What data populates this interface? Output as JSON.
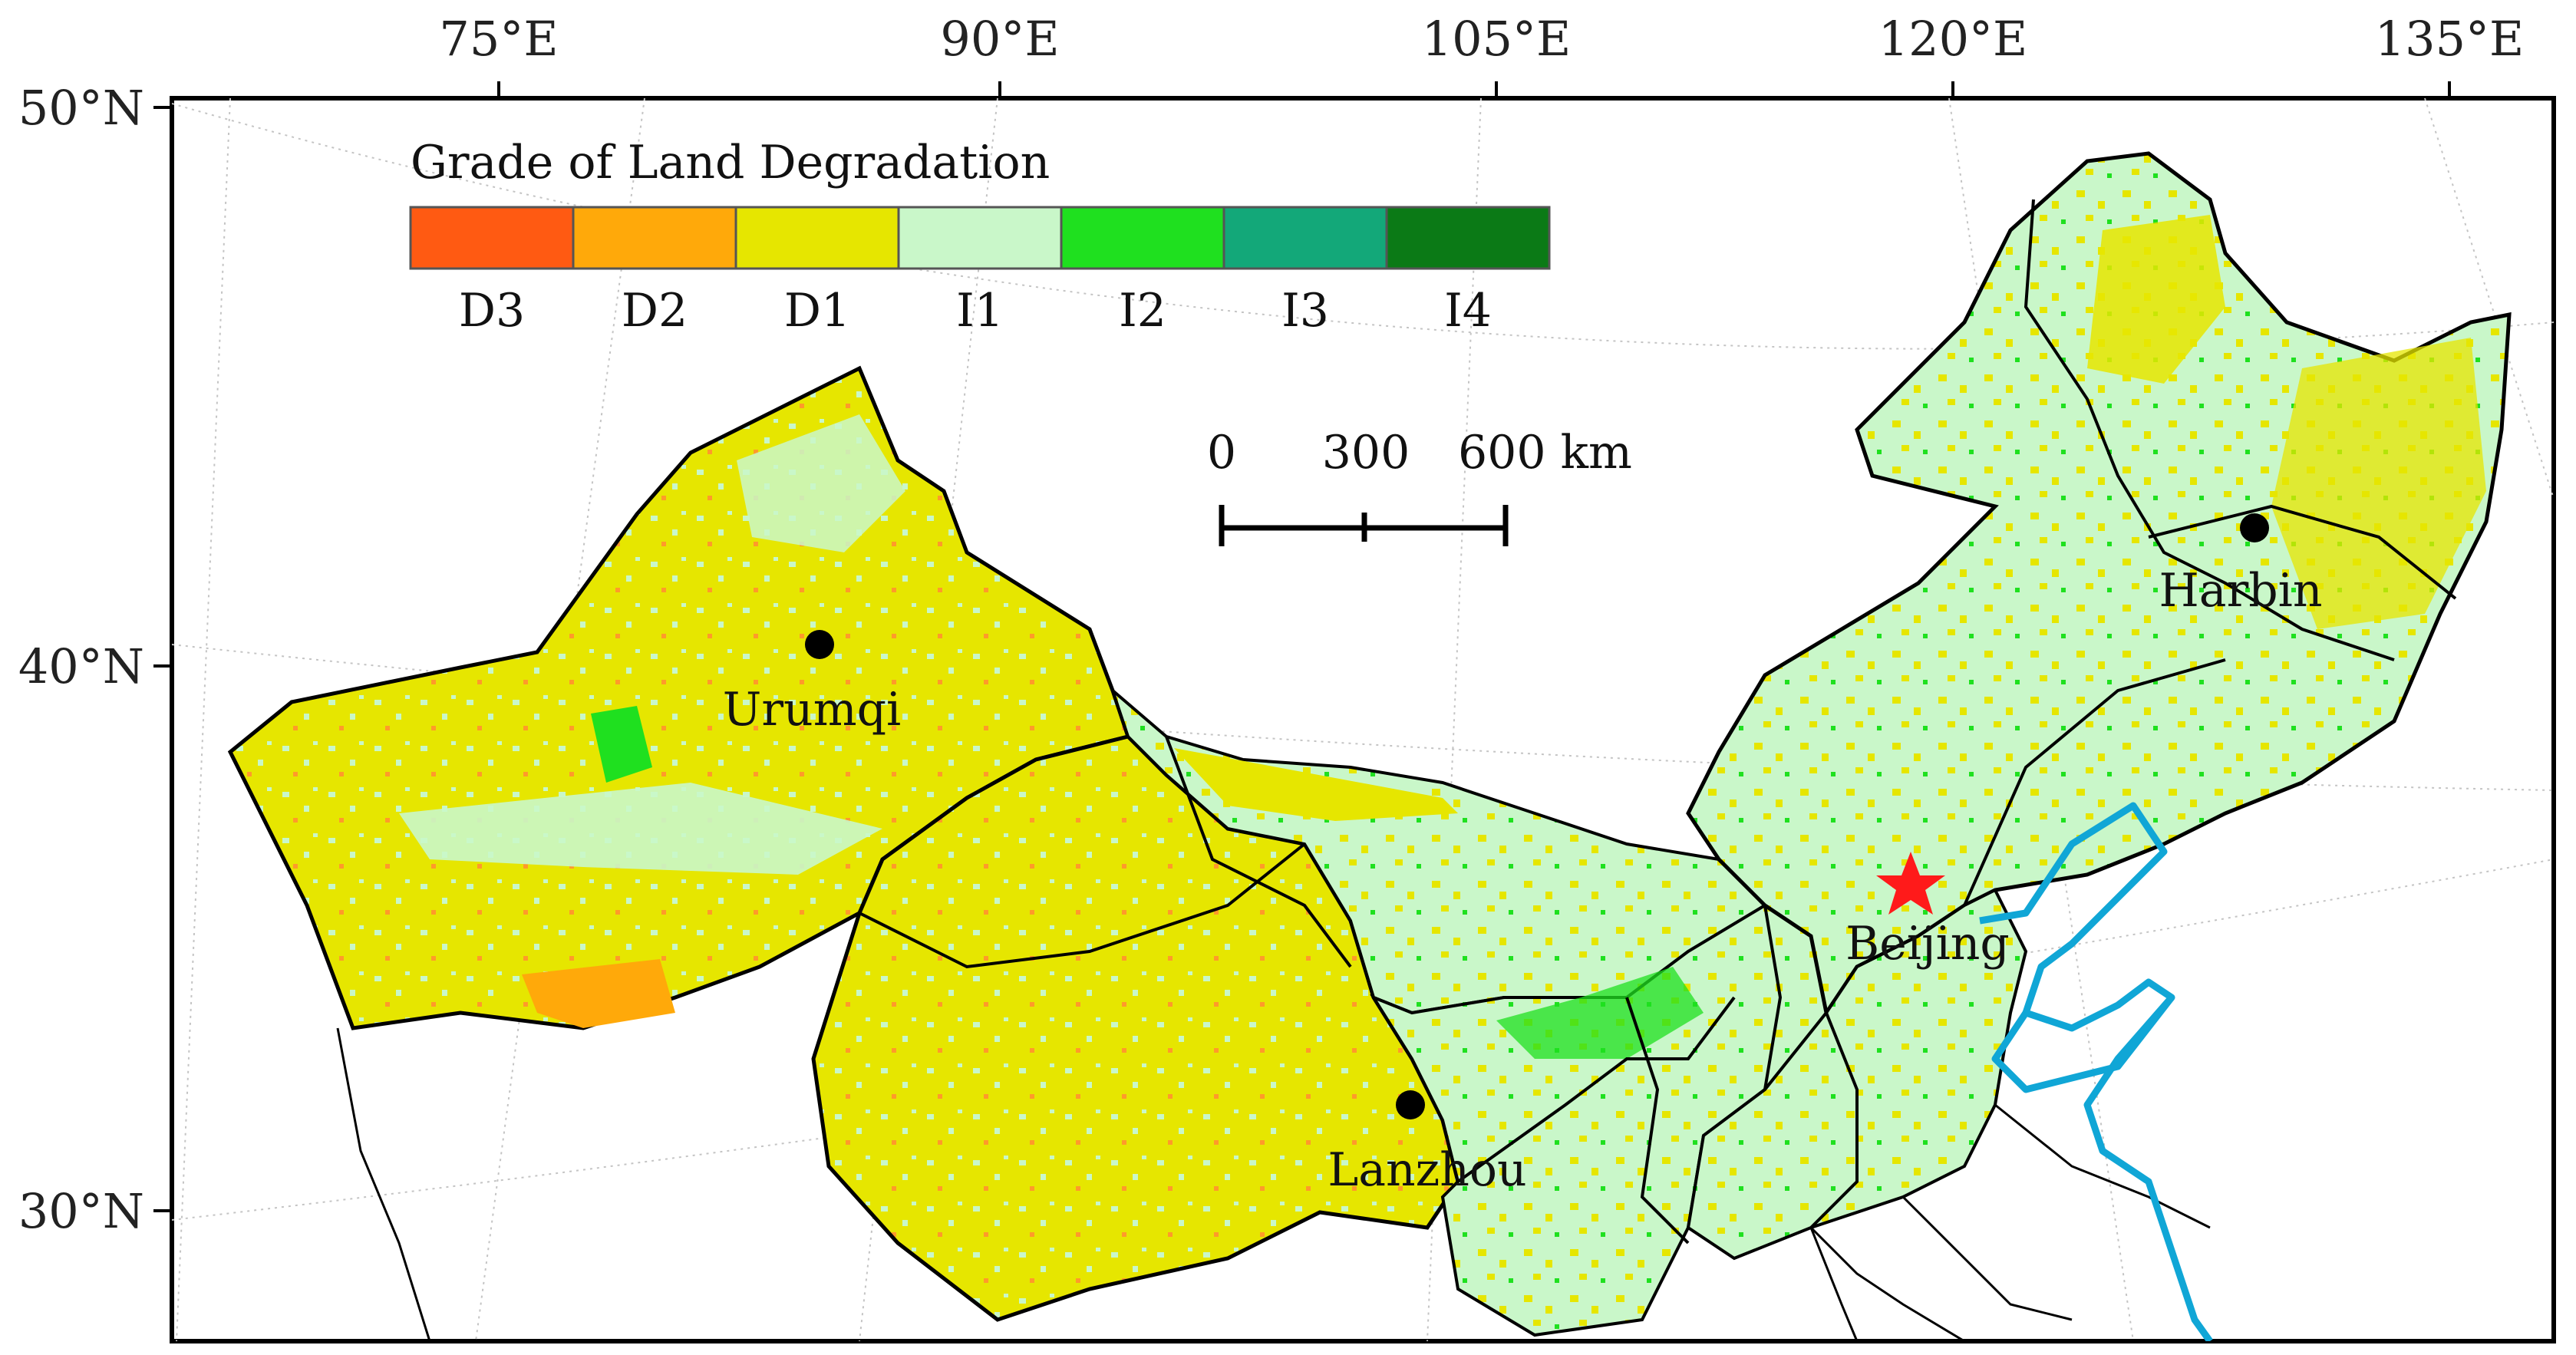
{
  "legend": {
    "title": "Grade of Land Degradation",
    "classes": [
      {
        "label": "D3",
        "color": "#ff5a12"
      },
      {
        "label": "D2",
        "color": "#ffa90a"
      },
      {
        "label": "D1",
        "color": "#e6e600"
      },
      {
        "label": "I1",
        "color": "#c9f7c9"
      },
      {
        "label": "I2",
        "color": "#1fe01f"
      },
      {
        "label": "I3",
        "color": "#13a879"
      },
      {
        "label": "I4",
        "color": "#0b7a16"
      }
    ]
  },
  "axes": {
    "longitude_labels": [
      "75°E",
      "90°E",
      "105°E",
      "120°E",
      "135°E"
    ],
    "latitude_labels": [
      "50°N",
      "40°N",
      "30°N"
    ]
  },
  "scale_bar": {
    "labels": [
      "0",
      "300",
      "600 km"
    ]
  },
  "cities": [
    {
      "name": "Urumqi",
      "marker": "dot"
    },
    {
      "name": "Lanzhou",
      "marker": "dot"
    },
    {
      "name": "Harbin",
      "marker": "dot"
    },
    {
      "name": "Beijing",
      "marker": "star"
    }
  ],
  "colors": {
    "coastline": "#10a6d6",
    "boundary": "#000000",
    "capital_star": "#ff1a1a",
    "city_dot": "#000000",
    "graticule": "#bdbdbd"
  }
}
